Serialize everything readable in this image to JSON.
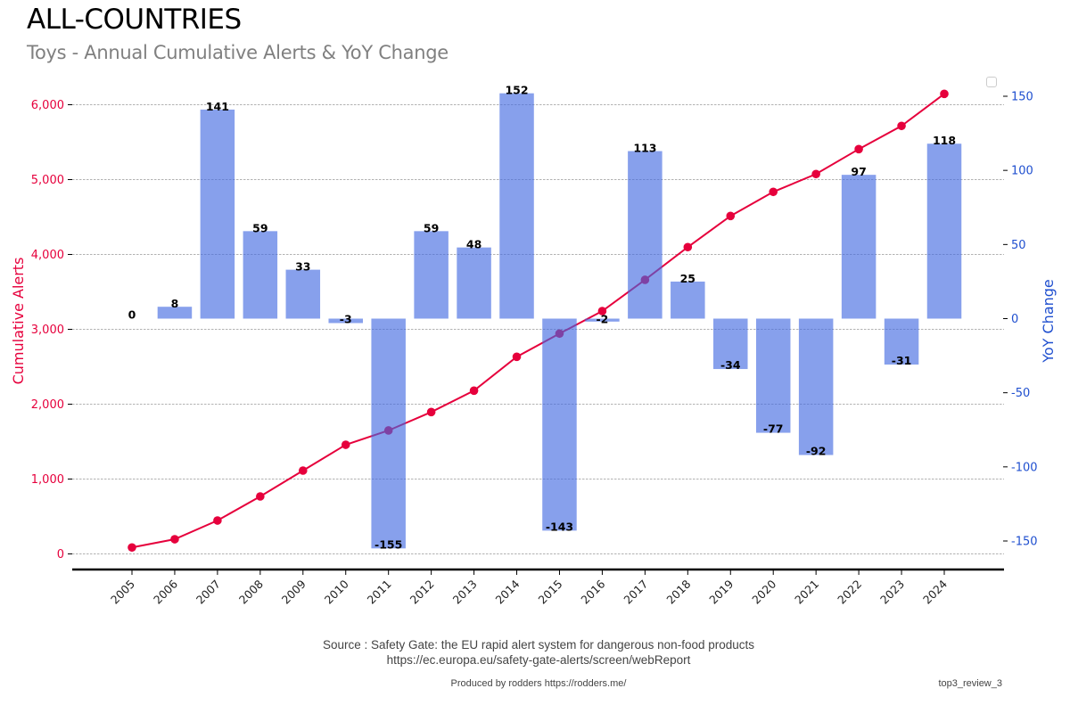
{
  "header": {
    "title": "ALL-COUNTRIES",
    "subtitle": "Toys - Annual Cumulative Alerts & YoY Change"
  },
  "footer": {
    "source_line1": "Source : Safety Gate: the EU rapid alert system for dangerous non-food products",
    "source_line2": "https://ec.europa.eu/safety-gate-alerts/screen/webReport",
    "produced_by": "Produced by rodders https://rodders.me/",
    "tag": "top3_review_3"
  },
  "colors": {
    "line": "#e6003c",
    "bar": "#879fe2",
    "left_axis": "#e6003c",
    "right_axis": "#1f4fcf"
  },
  "chart_data": {
    "type": "bar+line",
    "title": "ALL-COUNTRIES",
    "subtitle": "Toys - Annual Cumulative Alerts & YoY Change",
    "xlabel": "",
    "categories": [
      "2005",
      "2006",
      "2007",
      "2008",
      "2009",
      "2010",
      "2011",
      "2012",
      "2013",
      "2014",
      "2015",
      "2016",
      "2017",
      "2018",
      "2019",
      "2020",
      "2021",
      "2022",
      "2023",
      "2024"
    ],
    "series": [
      {
        "name": "Cumulative Alerts",
        "type": "line",
        "axis": "left",
        "values": [
          86,
          196,
          446,
          768,
          1113,
          1458,
          1649,
          1895,
          2181,
          2633,
          2943,
          3244,
          3661,
          4098,
          4514,
          4836,
          5074,
          5407,
          5717,
          6145
        ]
      },
      {
        "name": "YoY Change",
        "type": "bar",
        "axis": "right",
        "values": [
          0,
          8,
          141,
          59,
          33,
          -3,
          -155,
          59,
          48,
          152,
          -143,
          -2,
          113,
          25,
          -34,
          -77,
          -92,
          97,
          -31,
          118
        ],
        "data_labels": [
          "0",
          "8",
          "141",
          "59",
          "33",
          "-3",
          "-155",
          "59",
          "48",
          "152",
          "-143",
          "-2",
          "113",
          "25",
          "-34",
          "-77",
          "-92",
          "97",
          "-31",
          "118"
        ]
      }
    ],
    "left_axis": {
      "label": "Cumulative Alerts",
      "range": [
        -180,
        6360
      ],
      "ticks": [
        0,
        1000,
        2000,
        3000,
        4000,
        5000,
        6000
      ],
      "tick_labels": [
        "0",
        "1,000",
        "2,000",
        "3,000",
        "4,000",
        "5,000",
        "6,000"
      ]
    },
    "right_axis": {
      "label": "YoY Change",
      "range": [
        -168,
        168
      ],
      "ticks": [
        -150,
        -100,
        -50,
        0,
        50,
        100,
        150
      ],
      "tick_labels": [
        "-150",
        "-100",
        "-50",
        "0",
        "50",
        "100",
        "150"
      ]
    },
    "grid": "horizontal dashed (left axis)",
    "legend": "top-right (empty)"
  }
}
